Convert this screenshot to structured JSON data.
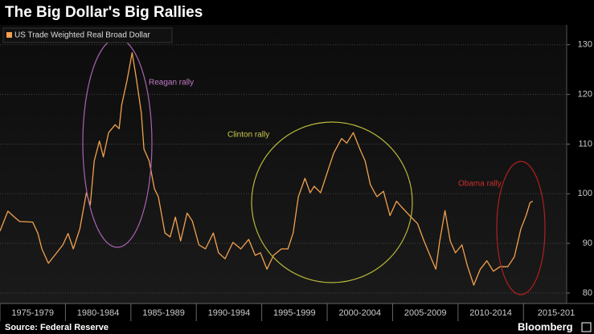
{
  "chart_data": {
    "type": "line",
    "title": "The Big Dollar's Big Rallies",
    "source": "Source: Federal Reserve",
    "brand": "Bloomberg",
    "legend": "top-left",
    "grid": true,
    "xlim": [
      1975,
      2018.3
    ],
    "ylim": [
      77.9,
      134
    ],
    "yticks": [
      80,
      90,
      100,
      110,
      120,
      130
    ],
    "xticks": [
      {
        "value": 1975,
        "label": "1975-1979"
      },
      {
        "value": 1980,
        "label": "1980-1984"
      },
      {
        "value": 1985,
        "label": "1985-1989"
      },
      {
        "value": 1990,
        "label": "1990-1994"
      },
      {
        "value": 1995,
        "label": "1995-1999"
      },
      {
        "value": 2000,
        "label": "2000-2004"
      },
      {
        "value": 2005,
        "label": "2005-2009"
      },
      {
        "value": 2010,
        "label": "2010-2014"
      },
      {
        "value": 2015,
        "label": "2015-201"
      }
    ],
    "annotations": [
      {
        "text": "Reagan rally",
        "color": "#c27cc8"
      },
      {
        "text": "Clinton rally",
        "color": "#c9c84e"
      },
      {
        "text": "Obama rally",
        "color": "#c9302c"
      }
    ],
    "series": [
      {
        "name": "US Trade Weighted Real Broad Dollar",
        "color": "#f2a14e",
        "x": [
          1975.0,
          1975.6,
          1976.1,
          1976.5,
          1977.5,
          1977.9,
          1978.2,
          1978.7,
          1979.3,
          1979.8,
          1980.2,
          1980.6,
          1981.1,
          1981.6,
          1981.9,
          1982.2,
          1982.6,
          1982.9,
          1983.3,
          1983.8,
          1984.1,
          1984.3,
          1984.7,
          1985.1,
          1985.4,
          1985.8,
          1986.0,
          1986.4,
          1986.8,
          1987.1,
          1987.6,
          1988.0,
          1988.4,
          1988.8,
          1989.3,
          1989.7,
          1990.2,
          1990.7,
          1991.3,
          1991.7,
          1992.2,
          1992.8,
          1993.4,
          1994.0,
          1994.5,
          1994.9,
          1995.4,
          1995.9,
          1996.5,
          1997.0,
          1997.4,
          1997.8,
          1998.3,
          1998.7,
          1999.0,
          1999.5,
          2000.0,
          2000.5,
          2001.1,
          2001.5,
          2002.0,
          2002.5,
          2002.9,
          2003.3,
          2003.8,
          2004.3,
          2004.8,
          2005.3,
          2005.7,
          2006.3,
          2006.9,
          2007.4,
          2007.9,
          2008.3,
          2008.6,
          2009.0,
          2009.4,
          2009.8,
          2010.3,
          2010.7,
          2011.2,
          2011.7,
          2012.2,
          2012.7,
          2013.2,
          2013.8,
          2014.3,
          2014.8,
          2015.2,
          2015.5,
          2015.7
        ],
        "values": [
          92.5,
          96.5,
          95.3,
          94.4,
          94.3,
          92,
          88.9,
          86,
          88,
          89.7,
          92,
          88.9,
          92.9,
          100.2,
          97.7,
          106.6,
          110.6,
          107.4,
          112.3,
          113.9,
          113.1,
          117.9,
          122.7,
          128.4,
          123.5,
          116.3,
          109,
          106.6,
          101,
          99.4,
          92.1,
          91.3,
          95.3,
          90.5,
          96.1,
          94.5,
          89.7,
          88.9,
          92.1,
          88.1,
          86.9,
          90.2,
          88.9,
          90.8,
          87.6,
          88.1,
          84.8,
          87.6,
          88.9,
          88.9,
          92.1,
          99.4,
          103.1,
          100.2,
          101.5,
          100.2,
          104.2,
          108.2,
          111.1,
          110.2,
          112.3,
          109,
          106.6,
          101.8,
          99.4,
          100.5,
          95.6,
          98.5,
          97.3,
          95.6,
          94,
          90.5,
          87.3,
          84.8,
          90.5,
          96.6,
          90.5,
          88.1,
          89.7,
          85.6,
          81.6,
          84.8,
          86.5,
          84.4,
          85.3,
          85.3,
          87.3,
          92.9,
          95.6,
          98.2,
          98.5
        ]
      }
    ]
  }
}
